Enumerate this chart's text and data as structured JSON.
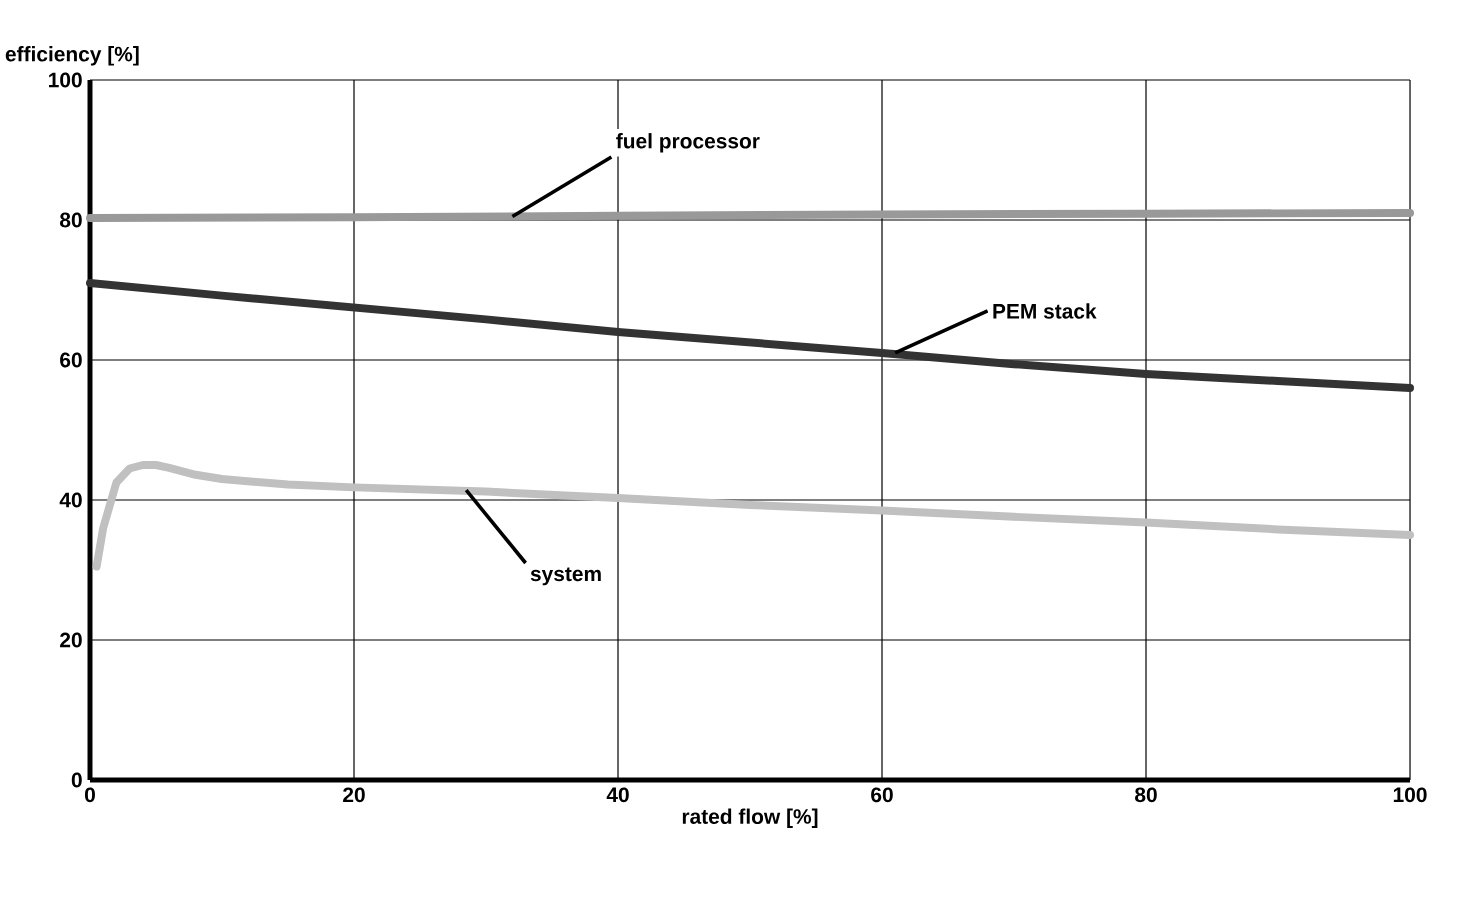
{
  "chart_data": {
    "type": "line",
    "xlabel": "rated flow [%]",
    "ylabel": "efficiency [%]",
    "xlim": [
      0,
      100
    ],
    "ylim": [
      0,
      100
    ],
    "xticks": [
      0,
      20,
      40,
      60,
      80,
      100
    ],
    "yticks": [
      0,
      20,
      40,
      60,
      80,
      100
    ],
    "grid": true,
    "series": [
      {
        "color": "#999999",
        "x": [
          0,
          20,
          40,
          60,
          80,
          100
        ],
        "values": [
          80.3,
          80.4,
          80.6,
          80.8,
          80.9,
          81
        ]
      },
      {
        "color": "#333333",
        "x": [
          0,
          10,
          20,
          30,
          40,
          50,
          60,
          70,
          80,
          90,
          100
        ],
        "values": [
          71,
          69.2,
          67.5,
          65.8,
          64,
          62.5,
          61,
          59.4,
          58,
          57,
          56
        ]
      },
      {
        "color": "#c0c0c0",
        "x": [
          0.5,
          1,
          2,
          3,
          4,
          5,
          6,
          8,
          10,
          15,
          20,
          25,
          30,
          40,
          50,
          60,
          70,
          80,
          90,
          100
        ],
        "values": [
          30.5,
          36,
          42.5,
          44.5,
          45,
          45,
          44.6,
          43.6,
          43,
          42.2,
          41.8,
          41.5,
          41.2,
          40.3,
          39.3,
          38.5,
          37.6,
          36.8,
          35.8,
          35
        ]
      }
    ],
    "annotations": [
      {
        "text": "fuel processor",
        "x": 32,
        "y": 80.5
      },
      {
        "text": "PEM stack",
        "x": 61,
        "y": 61
      },
      {
        "text": "system",
        "x": 28.5,
        "y": 41.4
      }
    ]
  }
}
